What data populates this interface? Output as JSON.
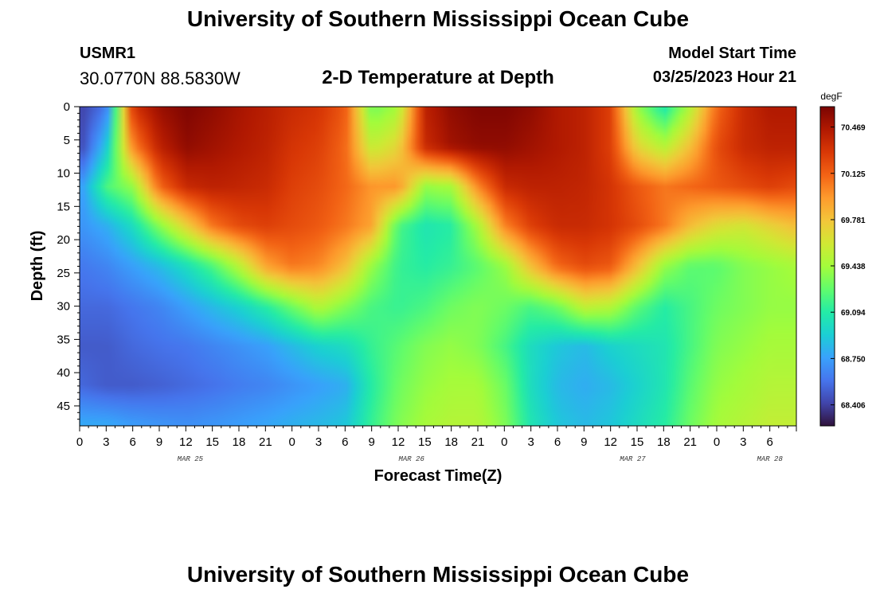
{
  "header": {
    "title": "University of Southern Mississippi Ocean Cube",
    "station_id": "USMR1",
    "station_location": "30.0770N  88.5830W",
    "subtitle": "2-D Temperature at Depth",
    "start_label": "Model Start Time",
    "start_value": "03/25/2023 Hour 21"
  },
  "footer": {
    "title": "University of Southern Mississippi Ocean Cube"
  },
  "chart_data": {
    "type": "heatmap",
    "title": "2-D Temperature at Depth",
    "xlabel": "Forecast Time(Z)",
    "ylabel": "Depth (ft)",
    "x_hours_range": [
      0,
      81
    ],
    "x_tick_labels": [
      "0",
      "3",
      "6",
      "9",
      "12",
      "15",
      "18",
      "21",
      "0",
      "3",
      "6",
      "9",
      "12",
      "15",
      "18",
      "21",
      "0",
      "3",
      "6",
      "9",
      "12",
      "15",
      "18",
      "21",
      "0",
      "3",
      "6"
    ],
    "date_labels": [
      {
        "text": "MAR 25",
        "hour": 12.5
      },
      {
        "text": "MAR 26",
        "hour": 37.5
      },
      {
        "text": "MAR 27",
        "hour": 62.5
      },
      {
        "text": "MAR 28",
        "hour": 78.0
      }
    ],
    "y_ticks": [
      0,
      5,
      10,
      15,
      20,
      25,
      30,
      35,
      40,
      45
    ],
    "ylim": [
      0,
      48
    ],
    "y_inverted": true,
    "colorbar": {
      "unit": "degF",
      "ticks": [
        70.469,
        70.125,
        69.781,
        69.438,
        69.094,
        68.75,
        68.406
      ],
      "tick_labels": [
        "70.469",
        "70.125",
        "69.781",
        "69.438",
        "69.094",
        "68.750",
        "68.406"
      ],
      "range": [
        68.25,
        70.62
      ],
      "colormap": [
        "#30123b",
        "#4145ab",
        "#4675ed",
        "#39a2fc",
        "#1bcfd4",
        "#24eca6",
        "#61fc6c",
        "#a4fc3b",
        "#d1e834",
        "#f3c63a",
        "#fe9b2d",
        "#f36315",
        "#d93806",
        "#b11901",
        "#7a0402"
      ]
    },
    "depth_rows_ft": [
      0,
      6,
      12,
      18,
      24,
      30,
      36,
      42,
      48
    ],
    "time_cols_hours": [
      0,
      3,
      6,
      9,
      12,
      15,
      18,
      21,
      24,
      27,
      30,
      33,
      36,
      39,
      42,
      45,
      48,
      51,
      54,
      57,
      60,
      63,
      66,
      69,
      72,
      75,
      78,
      81
    ],
    "values_degF": [
      [
        68.4,
        68.6,
        70.3,
        70.52,
        70.6,
        70.55,
        70.48,
        70.42,
        70.35,
        70.3,
        70.15,
        69.3,
        69.45,
        70.4,
        70.55,
        70.6,
        70.6,
        70.55,
        70.45,
        70.4,
        70.25,
        69.4,
        69.05,
        69.5,
        70.1,
        70.35,
        70.45,
        70.45
      ],
      [
        68.4,
        68.9,
        70.0,
        70.4,
        70.55,
        70.5,
        70.45,
        70.4,
        70.3,
        70.25,
        70.1,
        69.55,
        69.7,
        70.35,
        70.5,
        70.55,
        70.55,
        70.5,
        70.45,
        70.4,
        70.25,
        69.7,
        69.5,
        69.8,
        70.2,
        70.35,
        70.4,
        70.4
      ],
      [
        68.7,
        69.2,
        69.4,
        70.1,
        70.35,
        70.4,
        70.38,
        70.35,
        70.25,
        70.2,
        70.1,
        69.95,
        69.95,
        69.4,
        69.45,
        70.0,
        70.35,
        70.4,
        70.4,
        70.38,
        70.3,
        70.15,
        70.05,
        70.1,
        70.15,
        70.2,
        70.25,
        70.2
      ],
      [
        68.7,
        68.8,
        69.0,
        69.35,
        69.7,
        70.05,
        70.2,
        70.25,
        70.2,
        70.15,
        70.05,
        69.9,
        69.2,
        69.05,
        69.1,
        69.45,
        70.0,
        70.25,
        70.35,
        70.35,
        70.3,
        70.2,
        70.05,
        69.8,
        69.65,
        69.6,
        69.7,
        69.8
      ],
      [
        68.6,
        68.65,
        68.75,
        68.85,
        69.0,
        69.2,
        69.5,
        69.9,
        70.05,
        70.0,
        69.8,
        69.4,
        69.15,
        69.1,
        69.15,
        69.25,
        69.4,
        69.8,
        70.1,
        70.2,
        70.15,
        69.8,
        69.4,
        69.25,
        69.25,
        69.35,
        69.4,
        69.45
      ],
      [
        68.55,
        68.55,
        68.6,
        68.65,
        68.75,
        68.85,
        68.95,
        69.1,
        69.3,
        69.5,
        69.35,
        69.2,
        69.15,
        69.2,
        69.3,
        69.35,
        69.3,
        69.2,
        69.3,
        69.55,
        69.5,
        69.25,
        69.1,
        69.2,
        69.3,
        69.35,
        69.4,
        69.4
      ],
      [
        68.5,
        68.5,
        68.55,
        68.58,
        68.6,
        68.65,
        68.7,
        68.75,
        68.85,
        68.95,
        69.0,
        69.15,
        69.25,
        69.35,
        69.4,
        69.35,
        69.2,
        69.0,
        68.9,
        68.85,
        68.95,
        69.0,
        69.05,
        69.2,
        69.35,
        69.4,
        69.45,
        69.45
      ],
      [
        68.55,
        68.5,
        68.5,
        68.52,
        68.55,
        68.58,
        68.62,
        68.65,
        68.7,
        68.75,
        68.8,
        69.1,
        69.3,
        69.4,
        69.45,
        69.45,
        69.3,
        69.0,
        68.85,
        68.8,
        68.85,
        68.95,
        69.05,
        69.25,
        69.4,
        69.45,
        69.5,
        69.5
      ],
      [
        68.8,
        68.8,
        68.75,
        68.72,
        68.7,
        68.72,
        68.75,
        68.78,
        68.82,
        68.85,
        68.9,
        69.15,
        69.35,
        69.45,
        69.5,
        69.5,
        69.35,
        69.05,
        68.9,
        68.85,
        68.9,
        69.0,
        69.1,
        69.3,
        69.45,
        69.5,
        69.55,
        69.55
      ]
    ]
  }
}
